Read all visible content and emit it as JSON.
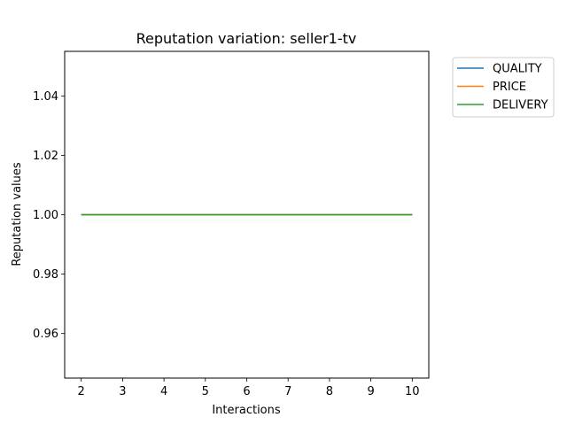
{
  "chart_data": {
    "type": "line",
    "title": "Reputation variation: seller1-tv",
    "xlabel": "Interactions",
    "ylabel": "Reputation values",
    "x": [
      2,
      3,
      4,
      5,
      6,
      7,
      8,
      9,
      10
    ],
    "xlim": [
      1.6,
      10.4
    ],
    "ylim": [
      0.945,
      1.055
    ],
    "xticks": [
      2,
      3,
      4,
      5,
      6,
      7,
      8,
      9,
      10
    ],
    "yticks": [
      0.96,
      0.98,
      1.0,
      1.02,
      1.04
    ],
    "ytick_labels": [
      "0.96",
      "0.98",
      "1.00",
      "1.02",
      "1.04"
    ],
    "grid": false,
    "legend_position": "outside-top-right",
    "series": [
      {
        "name": "QUALITY",
        "color": "#1f77b4",
        "values": [
          1,
          1,
          1,
          1,
          1,
          1,
          1,
          1,
          1
        ]
      },
      {
        "name": "PRICE",
        "color": "#ff7f0e",
        "values": [
          1,
          1,
          1,
          1,
          1,
          1,
          1,
          1,
          1
        ]
      },
      {
        "name": "DELIVERY",
        "color": "#2ca02c",
        "values": [
          1,
          1,
          1,
          1,
          1,
          1,
          1,
          1,
          1
        ]
      }
    ]
  }
}
